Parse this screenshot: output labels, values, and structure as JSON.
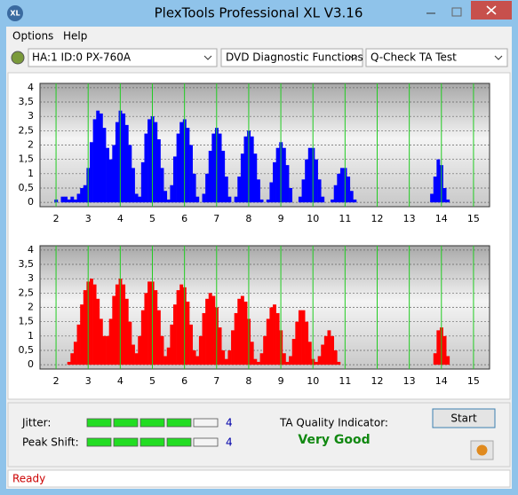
{
  "window": {
    "icon": "XL",
    "title": "PlexTools Professional XL V3.16"
  },
  "menu": [
    "Options",
    "Help"
  ],
  "toolbar": {
    "drive": "HA:1 ID:0  PX-760A",
    "function": "DVD Diagnostic Functions",
    "test": "Q-Check TA Test"
  },
  "chart_data": [
    {
      "type": "bar",
      "xlim": [
        1.5,
        15.5
      ],
      "ylim": [
        -0.15,
        4.15
      ],
      "xticks": [
        2,
        3,
        4,
        5,
        6,
        7,
        8,
        9,
        10,
        11,
        12,
        13,
        14,
        15
      ],
      "yticks": [
        0,
        {
          "value": 0.5,
          "label": "0,5"
        },
        1,
        {
          "value": 1.5,
          "label": "1,5"
        },
        2,
        {
          "value": 2.5,
          "label": "2,5"
        },
        3,
        {
          "value": 3.5,
          "label": "3,5"
        },
        4
      ],
      "grid": true,
      "grid_color": "#22cc22",
      "x": [
        2,
        2.1,
        2.2,
        2.3,
        2.4,
        2.5,
        2.6,
        2.7,
        2.8,
        2.9,
        3,
        3.1,
        3.2,
        3.3,
        3.4,
        3.5,
        3.6,
        3.7,
        3.8,
        3.9,
        4,
        4.1,
        4.2,
        4.3,
        4.4,
        4.5,
        4.6,
        4.7,
        4.8,
        4.9,
        5,
        5.1,
        5.2,
        5.3,
        5.4,
        5.5,
        5.6,
        5.7,
        5.8,
        5.9,
        6,
        6.1,
        6.2,
        6.3,
        6.4,
        6.5,
        6.6,
        6.7,
        6.8,
        6.9,
        7,
        7.1,
        7.2,
        7.3,
        7.4,
        7.5,
        7.6,
        7.7,
        7.8,
        7.9,
        8,
        8.1,
        8.2,
        8.3,
        8.4,
        8.5,
        8.6,
        8.7,
        8.8,
        8.9,
        9,
        9.1,
        9.2,
        9.3,
        9.4,
        9.5,
        9.6,
        9.7,
        9.8,
        9.9,
        10,
        10.1,
        10.2,
        10.3,
        10.4,
        10.5,
        10.6,
        10.7,
        10.8,
        10.9,
        11,
        11.1,
        11.2,
        11.3,
        11.4,
        11.5,
        11.6,
        11.7,
        11.8,
        11.9,
        12,
        12.1,
        12.2,
        12.3,
        12.4,
        12.5,
        12.6,
        12.7,
        12.8,
        12.9,
        13,
        13.1,
        13.2,
        13.3,
        13.4,
        13.5,
        13.6,
        13.7,
        13.8,
        13.9,
        14,
        14.1,
        14.2,
        14.3
      ],
      "series": [
        {
          "color": "#0000ff",
          "values": [
            0.1,
            0,
            0.2,
            0.2,
            0.1,
            0.2,
            0.1,
            0.3,
            0.5,
            0.6,
            1.2,
            2.1,
            2.9,
            3.2,
            3.1,
            2.6,
            1.9,
            1.5,
            2.0,
            2.8,
            3.2,
            3.1,
            2.7,
            2.0,
            1.2,
            0.3,
            0.2,
            1.4,
            2.4,
            2.9,
            3.0,
            2.8,
            2.2,
            1.2,
            0.4,
            0.1,
            0.6,
            1.6,
            2.4,
            2.8,
            2.9,
            2.6,
            2.0,
            1.0,
            0.2,
            0,
            0.3,
            1.0,
            1.8,
            2.4,
            2.6,
            2.4,
            1.8,
            0.9,
            0.2,
            0,
            0.2,
            0.9,
            1.7,
            2.3,
            2.5,
            2.3,
            1.7,
            0.8,
            0.1,
            0,
            0.1,
            0.7,
            1.4,
            1.9,
            2.1,
            1.9,
            1.3,
            0.5,
            0,
            0,
            0.2,
            0.8,
            1.5,
            1.9,
            1.9,
            1.5,
            0.8,
            0.2,
            0,
            0,
            0.1,
            0.6,
            1.0,
            1.2,
            1.2,
            0.9,
            0.4,
            0.1,
            0,
            0,
            0,
            0,
            0,
            0,
            0,
            0,
            0,
            0,
            0,
            0,
            0,
            0,
            0,
            0,
            0,
            0,
            0,
            0,
            0,
            0,
            0,
            0.3,
            0.9,
            1.5,
            1.3,
            0.5,
            0.1,
            0
          ]
        }
      ]
    },
    {
      "type": "bar",
      "xlim": [
        1.5,
        15.5
      ],
      "ylim": [
        -0.15,
        4.15
      ],
      "xticks": [
        2,
        3,
        4,
        5,
        6,
        7,
        8,
        9,
        10,
        11,
        12,
        13,
        14,
        15
      ],
      "yticks": [
        0,
        {
          "value": 0.5,
          "label": "0,5"
        },
        1,
        {
          "value": 1.5,
          "label": "1,5"
        },
        2,
        {
          "value": 2.5,
          "label": "2,5"
        },
        3,
        {
          "value": 3.5,
          "label": "3,5"
        },
        4
      ],
      "grid": true,
      "grid_color": "#22cc22",
      "x": [
        2,
        2.1,
        2.2,
        2.3,
        2.4,
        2.5,
        2.6,
        2.7,
        2.8,
        2.9,
        3,
        3.1,
        3.2,
        3.3,
        3.4,
        3.5,
        3.6,
        3.7,
        3.8,
        3.9,
        4,
        4.1,
        4.2,
        4.3,
        4.4,
        4.5,
        4.6,
        4.7,
        4.8,
        4.9,
        5,
        5.1,
        5.2,
        5.3,
        5.4,
        5.5,
        5.6,
        5.7,
        5.8,
        5.9,
        6,
        6.1,
        6.2,
        6.3,
        6.4,
        6.5,
        6.6,
        6.7,
        6.8,
        6.9,
        7,
        7.1,
        7.2,
        7.3,
        7.4,
        7.5,
        7.6,
        7.7,
        7.8,
        7.9,
        8,
        8.1,
        8.2,
        8.3,
        8.4,
        8.5,
        8.6,
        8.7,
        8.8,
        8.9,
        9,
        9.1,
        9.2,
        9.3,
        9.4,
        9.5,
        9.6,
        9.7,
        9.8,
        9.9,
        10,
        10.1,
        10.2,
        10.3,
        10.4,
        10.5,
        10.6,
        10.7,
        10.8,
        10.9,
        11,
        11.1,
        11.2,
        11.3,
        11.4,
        11.5,
        11.6,
        11.7,
        11.8,
        11.9,
        12,
        12.1,
        12.2,
        12.3,
        12.4,
        12.5,
        12.6,
        12.7,
        12.8,
        12.9,
        13,
        13.1,
        13.2,
        13.3,
        13.4,
        13.5,
        13.6,
        13.7,
        13.8,
        13.9,
        14,
        14.1,
        14.2,
        14.3
      ],
      "series": [
        {
          "color": "#ff0000",
          "values": [
            0,
            0,
            0,
            0,
            0.1,
            0.4,
            0.8,
            1.4,
            2.1,
            2.6,
            2.9,
            3.0,
            2.8,
            2.3,
            1.6,
            1.0,
            1.0,
            1.6,
            2.4,
            2.8,
            3.0,
            2.8,
            2.3,
            1.5,
            0.7,
            0.4,
            1.0,
            1.9,
            2.5,
            2.9,
            2.9,
            2.6,
            1.9,
            1.0,
            0.3,
            0.6,
            1.4,
            2.1,
            2.6,
            2.8,
            2.7,
            2.2,
            1.4,
            0.5,
            0.3,
            1.0,
            1.8,
            2.3,
            2.5,
            2.4,
            2.0,
            1.3,
            0.5,
            0.2,
            0.5,
            1.2,
            1.8,
            2.3,
            2.4,
            2.2,
            1.6,
            0.8,
            0.2,
            0.1,
            0.4,
            1.0,
            1.6,
            2.0,
            2.1,
            1.8,
            1.2,
            0.4,
            0.1,
            0.3,
            0.9,
            1.5,
            1.9,
            1.9,
            1.5,
            0.8,
            0.2,
            0.1,
            0.3,
            0.7,
            1.0,
            1.2,
            1.0,
            0.5,
            0.1,
            0,
            0,
            0,
            0,
            0,
            0,
            0,
            0,
            0,
            0,
            0,
            0,
            0,
            0,
            0,
            0,
            0,
            0,
            0,
            0,
            0,
            0,
            0,
            0,
            0,
            0,
            0,
            0,
            0,
            0.4,
            1.2,
            1.3,
            1.0,
            0.3,
            0
          ]
        }
      ]
    }
  ],
  "panel": {
    "jitter_label": "Jitter:",
    "jitter_value": 4,
    "peak_shift_label": "Peak Shift:",
    "peak_shift_value": 4,
    "ta_label": "TA Quality Indicator:",
    "ta_result": "Very Good",
    "start": "Start"
  },
  "status": "Ready"
}
